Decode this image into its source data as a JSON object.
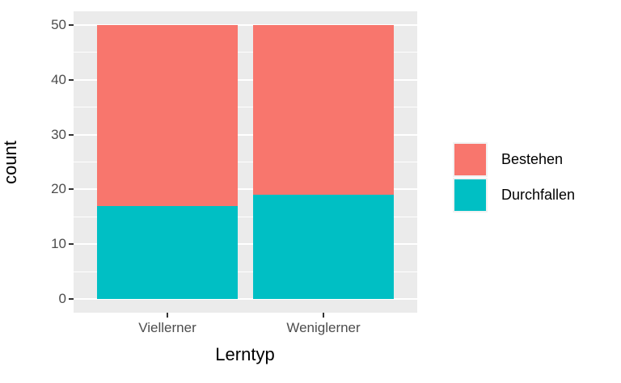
{
  "chart_data": {
    "type": "bar",
    "stacked": true,
    "categories": [
      "Viellerner",
      "Weniglerner"
    ],
    "series": [
      {
        "name": "Bestehen",
        "color": "#F8766D",
        "values": [
          33,
          31
        ]
      },
      {
        "name": "Durchfallen",
        "color": "#00BFC4",
        "values": [
          17,
          19
        ]
      }
    ],
    "xlabel": "Lerntyp",
    "ylabel": "count",
    "ylim": [
      0,
      50
    ],
    "yticks": [
      0,
      10,
      20,
      30,
      40,
      50
    ],
    "yticks_minor": [
      5,
      15,
      25,
      35,
      45
    ],
    "grid": true,
    "legend_position": "right",
    "colors": {
      "panel_background": "#EBEBEB",
      "grid": "#FFFFFF",
      "tick_label": "#4D4D4D",
      "axis_title": "#000000",
      "tick_mark": "#333333",
      "legend_key_background": "#F2F2F2"
    }
  }
}
